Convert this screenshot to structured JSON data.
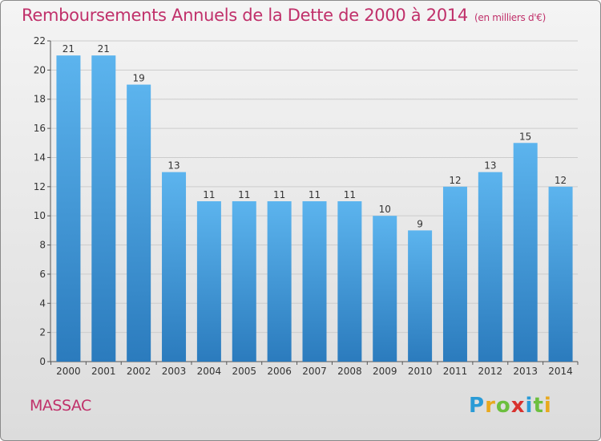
{
  "header": {
    "title": "Remboursements Annuels de la Dette de 2000 à 2014",
    "unit": "(en milliers d'€)"
  },
  "footer": {
    "commune": "MASSAC",
    "logo_letters": [
      "P",
      "r",
      "o",
      "x",
      "i",
      "t",
      "i"
    ],
    "logo_colors": [
      "#2a9bd6",
      "#e8a91e",
      "#6cbf3e",
      "#d8322e",
      "#2a9bd6",
      "#6cbf3e",
      "#e8a91e"
    ]
  },
  "colors": {
    "bar_top": "#5cb4ee",
    "bar_bottom": "#2b7bbd",
    "title": "#c0306a",
    "grid": "#cccccc",
    "axis": "#555555"
  },
  "chart_data": {
    "type": "bar",
    "title": "Remboursements Annuels de la Dette de 2000 à 2014",
    "xlabel": "",
    "ylabel": "",
    "categories": [
      "2000",
      "2001",
      "2002",
      "2003",
      "2004",
      "2005",
      "2006",
      "2007",
      "2008",
      "2009",
      "2010",
      "2011",
      "2012",
      "2013",
      "2014"
    ],
    "values": [
      21,
      21,
      19,
      13,
      11,
      11,
      11,
      11,
      11,
      10,
      9,
      12,
      13,
      15,
      12
    ],
    "ylim": [
      0,
      22
    ],
    "yticks": [
      0,
      2,
      4,
      6,
      8,
      10,
      12,
      14,
      16,
      18,
      20,
      22
    ],
    "grid": true
  }
}
